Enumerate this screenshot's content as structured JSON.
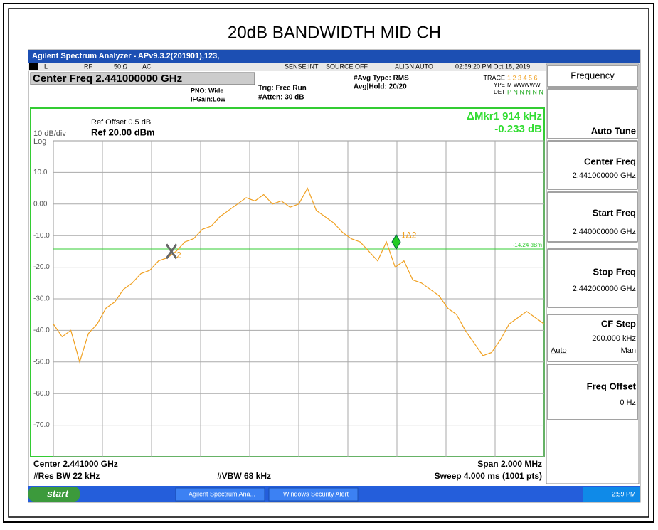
{
  "page_title": "20dB BANDWIDTH MID CH",
  "window": {
    "title": "Agilent Spectrum Analyzer - APv9.3.2(201901),123,",
    "status": {
      "mode": "L",
      "rf": "RF",
      "impedance": "50 Ω",
      "coupling": "AC",
      "sense": "SENSE:INT",
      "source": "SOURCE OFF",
      "align": "ALIGN AUTO",
      "datetime": "02:59:20 PM Oct 18, 2019"
    },
    "header": {
      "center_freq": "Center Freq 2.441000000 GHz",
      "pno": "PNO: Wide",
      "ifgain": "IFGain:Low",
      "trig": "Trig: Free Run",
      "atten": "#Atten: 30 dB",
      "avg_type": "#Avg Type: RMS",
      "avg_hold": "Avg|Hold: 20/20",
      "trace_label": "TRACE",
      "trace_nums": "1 2 3 4 5 6",
      "type_label": "TYPE",
      "type_vals": "M WWWWW",
      "det_label": "DET",
      "det_vals": "P N N N N N"
    },
    "plot_header": {
      "ref_offset": "Ref Offset 0.5 dB",
      "ref_level": "Ref 20.00 dBm",
      "scale": "10 dB/div",
      "scale_type": "Log",
      "marker_readout_1": "ΔMkr1 914 kHz",
      "marker_readout_2": "-0.233 dB"
    },
    "chart": {
      "type": "line",
      "ylim": [
        -80,
        20
      ],
      "yticks": [
        {
          "value": 10,
          "label": "10.0"
        },
        {
          "value": 0,
          "label": "0.00"
        },
        {
          "value": -10,
          "label": "-10.0"
        },
        {
          "value": -20,
          "label": "-20.0"
        },
        {
          "value": -30,
          "label": "-30.0"
        },
        {
          "value": -40,
          "label": "-40.0"
        },
        {
          "value": -50,
          "label": "-50.0"
        },
        {
          "value": -60,
          "label": "-60.0"
        },
        {
          "value": -70,
          "label": "-70.0"
        }
      ],
      "color": "#f0a020",
      "values": [
        -38,
        -42,
        -40,
        -50,
        -41,
        -38,
        -33,
        -31,
        -27,
        -25,
        -22,
        -21,
        -18,
        -17,
        -15,
        -12,
        -11,
        -8,
        -7,
        -4,
        -2,
        0,
        2,
        1,
        3,
        0,
        1,
        -1,
        0,
        5,
        -2,
        -4,
        -6,
        -9,
        -11,
        -12,
        -15,
        -18,
        -12,
        -20,
        -18,
        -24,
        -25,
        -27,
        -29,
        -33,
        -35,
        -40,
        -44,
        -48,
        -47,
        -43,
        -38,
        -36,
        -34,
        -36,
        -38
      ],
      "display_line": -14.24,
      "display_line_label": "-14.24 dBm",
      "markers": [
        {
          "label": "1Δ2",
          "value": -12
        },
        {
          "label": "2",
          "value": -15
        }
      ]
    },
    "footer": {
      "center": "Center 2.441000 GHz",
      "span": "Span 2.000 MHz",
      "rbw": "#Res BW 22 kHz",
      "vbw": "#VBW 68 kHz",
      "sweep": "Sweep  4.000 ms (1001 pts)"
    },
    "softkeys": {
      "menu": "Frequency",
      "auto_tune": "Auto Tune",
      "center_label": "Center Freq",
      "center_value": "2.441000000 GHz",
      "start_label": "Start Freq",
      "start_value": "2.440000000 GHz",
      "stop_label": "Stop Freq",
      "stop_value": "2.442000000 GHz",
      "cf_label": "CF Step",
      "cf_value": "200.000 kHz",
      "cf_auto": "Auto",
      "cf_man": "Man",
      "offset_label": "Freq Offset",
      "offset_value": "0 Hz"
    },
    "taskbar": {
      "start": "start",
      "task1": "Agilent Spectrum Ana...",
      "task2": "Windows Security Alert",
      "clock": "2:59 PM"
    }
  }
}
